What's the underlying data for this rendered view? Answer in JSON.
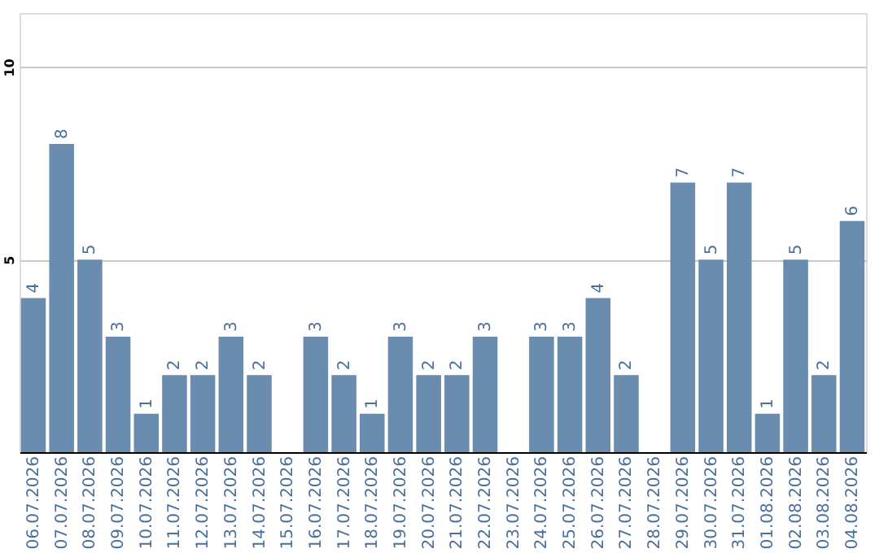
{
  "chart_data": {
    "type": "bar",
    "categories": [
      "06.07.2026",
      "07.07.2026",
      "08.07.2026",
      "09.07.2026",
      "10.07.2026",
      "11.07.2026",
      "12.07.2026",
      "13.07.2026",
      "14.07.2026",
      "15.07.2026",
      "16.07.2026",
      "17.07.2026",
      "18.07.2026",
      "19.07.2026",
      "20.07.2026",
      "21.07.2026",
      "22.07.2026",
      "23.07.2026",
      "24.07.2026",
      "25.07.2026",
      "26.07.2026",
      "27.07.2026",
      "28.07.2026",
      "29.07.2026",
      "30.07.2026",
      "31.07.2026",
      "01.08.2026",
      "02.08.2026",
      "03.08.2026",
      "04.08.2026"
    ],
    "values": [
      4,
      8,
      5,
      3,
      1,
      2,
      2,
      3,
      2,
      0,
      3,
      2,
      1,
      3,
      2,
      2,
      3,
      0,
      3,
      3,
      4,
      2,
      0,
      7,
      5,
      7,
      1,
      5,
      2,
      6
    ],
    "value_labels": [
      "4",
      "8",
      "5",
      "3",
      "1",
      "2",
      "2",
      "3",
      "2",
      null,
      "3",
      "2",
      "1",
      "3",
      "2",
      "2",
      "3",
      null,
      "3",
      "3",
      "4",
      "2",
      null,
      "7",
      "5",
      "7",
      "1",
      "5",
      "2",
      "6"
    ],
    "color": "#6a8caf",
    "ylim": [
      0,
      11.4
    ],
    "yticks": [
      5,
      10
    ],
    "grid": "y"
  }
}
